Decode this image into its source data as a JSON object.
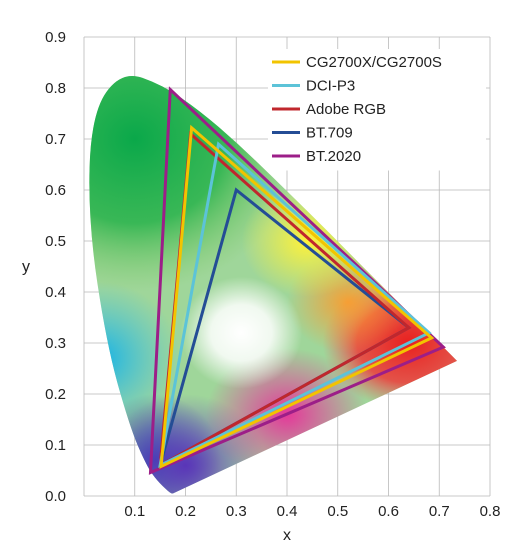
{
  "chart_data": {
    "type": "line",
    "title": "",
    "xlabel": "x",
    "ylabel": "y",
    "xlim": [
      0,
      0.8
    ],
    "ylim": [
      0,
      0.9
    ],
    "x_ticks": [
      "0.1",
      "0.2",
      "0.3",
      "0.4",
      "0.5",
      "0.6",
      "0.7",
      "0.8"
    ],
    "y_ticks": [
      "0.0",
      "0.1",
      "0.2",
      "0.3",
      "0.4",
      "0.5",
      "0.6",
      "0.7",
      "0.8",
      "0.9"
    ],
    "grid": true,
    "legend_position": "top-right",
    "spectral_locus": [
      [
        0.175,
        0.005
      ],
      [
        0.174,
        0.005
      ],
      [
        0.172,
        0.005
      ],
      [
        0.166,
        0.009
      ],
      [
        0.144,
        0.03
      ],
      [
        0.124,
        0.058
      ],
      [
        0.091,
        0.133
      ],
      [
        0.045,
        0.295
      ],
      [
        0.008,
        0.538
      ],
      [
        0.014,
        0.75
      ],
      [
        0.074,
        0.834
      ],
      [
        0.155,
        0.806
      ],
      [
        0.23,
        0.754
      ],
      [
        0.302,
        0.692
      ],
      [
        0.373,
        0.624
      ],
      [
        0.444,
        0.555
      ],
      [
        0.512,
        0.487
      ],
      [
        0.575,
        0.424
      ],
      [
        0.627,
        0.372
      ],
      [
        0.666,
        0.334
      ],
      [
        0.692,
        0.308
      ],
      [
        0.735,
        0.265
      ]
    ],
    "series": [
      {
        "name": "CG2700X/CG2700S",
        "color": "#f2c400",
        "points": [
          [
            0.685,
            0.31
          ],
          [
            0.212,
            0.722
          ],
          [
            0.152,
            0.058
          ]
        ]
      },
      {
        "name": "DCI-P3",
        "color": "#5cc3d8",
        "points": [
          [
            0.68,
            0.32
          ],
          [
            0.265,
            0.69
          ],
          [
            0.15,
            0.06
          ]
        ]
      },
      {
        "name": "Adobe RGB",
        "color": "#c0272d",
        "points": [
          [
            0.64,
            0.33
          ],
          [
            0.21,
            0.71
          ],
          [
            0.15,
            0.06
          ]
        ]
      },
      {
        "name": "BT.709",
        "color": "#244d95",
        "points": [
          [
            0.64,
            0.33
          ],
          [
            0.3,
            0.6
          ],
          [
            0.15,
            0.06
          ]
        ]
      },
      {
        "name": "BT.2020",
        "color": "#9c1e88",
        "points": [
          [
            0.708,
            0.292
          ],
          [
            0.17,
            0.797
          ],
          [
            0.131,
            0.046
          ]
        ]
      }
    ]
  }
}
